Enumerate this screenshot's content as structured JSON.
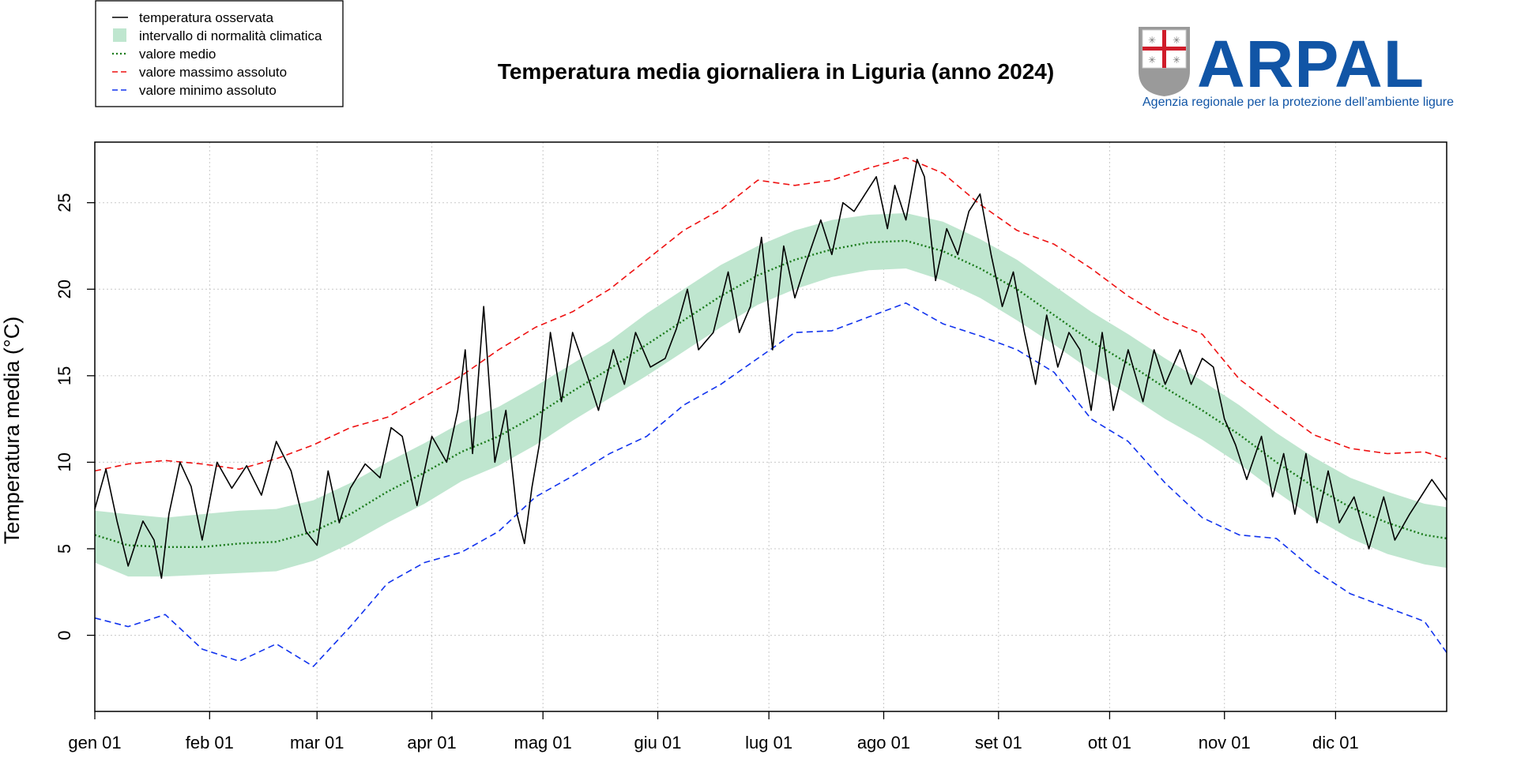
{
  "chart_data": {
    "type": "line",
    "title": "Temperatura media giornaliera in Liguria (anno 2024)",
    "xlabel": "",
    "ylabel": "Temperatura media (°C)",
    "xlim_days": [
      1,
      366
    ],
    "ylim": [
      -4.4,
      28.5
    ],
    "x_ticks": [
      {
        "label": "gen 01",
        "day": 1
      },
      {
        "label": "feb 01",
        "day": 32
      },
      {
        "label": "mar 01",
        "day": 61
      },
      {
        "label": "apr 01",
        "day": 92
      },
      {
        "label": "mag 01",
        "day": 122
      },
      {
        "label": "giu 01",
        "day": 153
      },
      {
        "label": "lug 01",
        "day": 183
      },
      {
        "label": "ago 01",
        "day": 214
      },
      {
        "label": "set 01",
        "day": 245
      },
      {
        "label": "ott 01",
        "day": 275
      },
      {
        "label": "nov 01",
        "day": 306
      },
      {
        "label": "dic 01",
        "day": 336
      }
    ],
    "y_ticks": [
      0,
      5,
      10,
      15,
      20,
      25
    ],
    "grid": true,
    "legend_position": "top-left",
    "legend": [
      {
        "label": "temperatura osservata",
        "style": "solid",
        "color": "#000000"
      },
      {
        "label": "intervallo di normalità climatica",
        "style": "band",
        "color": "#bfe6cf"
      },
      {
        "label": "valore medio",
        "style": "dotted",
        "color": "#1a7a1a"
      },
      {
        "label": "valore massimo assoluto",
        "style": "dashed",
        "color": "#ee1111"
      },
      {
        "label": "valore minimo assoluto",
        "style": "dashed",
        "color": "#1133ee"
      }
    ],
    "series": [
      {
        "name": "temperatura osservata",
        "color": "#000000",
        "points": [
          [
            1,
            7.3
          ],
          [
            4,
            9.6
          ],
          [
            7,
            6.6
          ],
          [
            10,
            4.0
          ],
          [
            14,
            6.6
          ],
          [
            17,
            5.5
          ],
          [
            19,
            3.3
          ],
          [
            21,
            7.0
          ],
          [
            24,
            10.0
          ],
          [
            27,
            8.6
          ],
          [
            30,
            5.5
          ],
          [
            34,
            10.0
          ],
          [
            38,
            8.5
          ],
          [
            42,
            9.8
          ],
          [
            46,
            8.1
          ],
          [
            50,
            11.2
          ],
          [
            54,
            9.5
          ],
          [
            58,
            6.0
          ],
          [
            61,
            5.2
          ],
          [
            64,
            9.5
          ],
          [
            67,
            6.5
          ],
          [
            70,
            8.5
          ],
          [
            74,
            9.9
          ],
          [
            78,
            9.1
          ],
          [
            81,
            12.0
          ],
          [
            84,
            11.5
          ],
          [
            88,
            7.5
          ],
          [
            92,
            11.5
          ],
          [
            96,
            10.0
          ],
          [
            99,
            13.0
          ],
          [
            101,
            16.5
          ],
          [
            103,
            10.5
          ],
          [
            106,
            19.0
          ],
          [
            109,
            10.0
          ],
          [
            112,
            13.0
          ],
          [
            115,
            7.0
          ],
          [
            117,
            5.3
          ],
          [
            119,
            8.5
          ],
          [
            121,
            11.0
          ],
          [
            124,
            17.5
          ],
          [
            127,
            13.5
          ],
          [
            130,
            17.5
          ],
          [
            134,
            15.0
          ],
          [
            137,
            13.0
          ],
          [
            141,
            16.5
          ],
          [
            144,
            14.5
          ],
          [
            147,
            17.5
          ],
          [
            151,
            15.5
          ],
          [
            155,
            16.0
          ],
          [
            158,
            17.7
          ],
          [
            161,
            20.0
          ],
          [
            164,
            16.5
          ],
          [
            168,
            17.5
          ],
          [
            172,
            21.0
          ],
          [
            175,
            17.5
          ],
          [
            178,
            19.0
          ],
          [
            181,
            23.0
          ],
          [
            184,
            16.5
          ],
          [
            187,
            22.5
          ],
          [
            190,
            19.5
          ],
          [
            193,
            21.5
          ],
          [
            197,
            24.0
          ],
          [
            200,
            22.0
          ],
          [
            203,
            25.0
          ],
          [
            206,
            24.5
          ],
          [
            209,
            25.5
          ],
          [
            212,
            26.5
          ],
          [
            215,
            23.5
          ],
          [
            217,
            26.0
          ],
          [
            220,
            24.0
          ],
          [
            223,
            27.5
          ],
          [
            225,
            26.5
          ],
          [
            228,
            20.5
          ],
          [
            231,
            23.5
          ],
          [
            234,
            22.0
          ],
          [
            237,
            24.5
          ],
          [
            240,
            25.5
          ],
          [
            243,
            22.0
          ],
          [
            246,
            19.0
          ],
          [
            249,
            21.0
          ],
          [
            252,
            17.5
          ],
          [
            255,
            14.5
          ],
          [
            258,
            18.5
          ],
          [
            261,
            15.5
          ],
          [
            264,
            17.5
          ],
          [
            267,
            16.5
          ],
          [
            270,
            13.0
          ],
          [
            273,
            17.5
          ],
          [
            276,
            13.0
          ],
          [
            280,
            16.5
          ],
          [
            284,
            13.5
          ],
          [
            287,
            16.5
          ],
          [
            290,
            14.5
          ],
          [
            294,
            16.5
          ],
          [
            297,
            14.5
          ],
          [
            300,
            16.0
          ],
          [
            303,
            15.5
          ],
          [
            306,
            12.5
          ],
          [
            309,
            11.0
          ],
          [
            312,
            9.0
          ],
          [
            316,
            11.5
          ],
          [
            319,
            8.0
          ],
          [
            322,
            10.5
          ],
          [
            325,
            7.0
          ],
          [
            328,
            10.5
          ],
          [
            331,
            6.5
          ],
          [
            334,
            9.5
          ],
          [
            337,
            6.5
          ],
          [
            341,
            8.0
          ],
          [
            345,
            5.0
          ],
          [
            349,
            8.0
          ],
          [
            352,
            5.5
          ],
          [
            356,
            7.0
          ],
          [
            359,
            8.0
          ],
          [
            362,
            9.0
          ],
          [
            366,
            7.8
          ]
        ]
      },
      {
        "name": "valore medio",
        "color": "#1a7a1a",
        "points": [
          [
            1,
            5.8
          ],
          [
            10,
            5.2
          ],
          [
            20,
            5.1
          ],
          [
            30,
            5.1
          ],
          [
            40,
            5.3
          ],
          [
            50,
            5.4
          ],
          [
            60,
            6.0
          ],
          [
            70,
            7.0
          ],
          [
            80,
            8.3
          ],
          [
            90,
            9.4
          ],
          [
            100,
            10.6
          ],
          [
            110,
            11.5
          ],
          [
            120,
            12.7
          ],
          [
            130,
            14.1
          ],
          [
            140,
            15.4
          ],
          [
            150,
            16.8
          ],
          [
            160,
            18.2
          ],
          [
            170,
            19.6
          ],
          [
            180,
            20.8
          ],
          [
            190,
            21.7
          ],
          [
            200,
            22.3
          ],
          [
            210,
            22.7
          ],
          [
            220,
            22.8
          ],
          [
            230,
            22.2
          ],
          [
            240,
            21.2
          ],
          [
            250,
            20.0
          ],
          [
            260,
            18.5
          ],
          [
            270,
            17.0
          ],
          [
            280,
            15.7
          ],
          [
            290,
            14.3
          ],
          [
            300,
            13.0
          ],
          [
            310,
            11.6
          ],
          [
            320,
            10.0
          ],
          [
            330,
            8.6
          ],
          [
            340,
            7.4
          ],
          [
            350,
            6.5
          ],
          [
            360,
            5.8
          ],
          [
            366,
            5.6
          ]
        ]
      },
      {
        "name": "valore massimo assoluto",
        "color": "#ee1111",
        "points": [
          [
            1,
            9.5
          ],
          [
            10,
            9.9
          ],
          [
            20,
            10.1
          ],
          [
            30,
            9.9
          ],
          [
            40,
            9.6
          ],
          [
            50,
            10.2
          ],
          [
            60,
            11.0
          ],
          [
            70,
            12.0
          ],
          [
            80,
            12.6
          ],
          [
            90,
            13.8
          ],
          [
            100,
            15.0
          ],
          [
            110,
            16.5
          ],
          [
            120,
            17.8
          ],
          [
            130,
            18.7
          ],
          [
            140,
            20.0
          ],
          [
            150,
            21.7
          ],
          [
            160,
            23.4
          ],
          [
            170,
            24.6
          ],
          [
            180,
            26.3
          ],
          [
            190,
            26.0
          ],
          [
            200,
            26.3
          ],
          [
            210,
            27.0
          ],
          [
            220,
            27.6
          ],
          [
            230,
            26.7
          ],
          [
            240,
            24.9
          ],
          [
            250,
            23.4
          ],
          [
            260,
            22.6
          ],
          [
            270,
            21.2
          ],
          [
            280,
            19.6
          ],
          [
            290,
            18.3
          ],
          [
            300,
            17.4
          ],
          [
            310,
            14.8
          ],
          [
            320,
            13.2
          ],
          [
            330,
            11.6
          ],
          [
            340,
            10.8
          ],
          [
            350,
            10.5
          ],
          [
            360,
            10.6
          ],
          [
            366,
            10.2
          ]
        ]
      },
      {
        "name": "valore minimo assoluto",
        "color": "#1133ee",
        "points": [
          [
            1,
            1.0
          ],
          [
            10,
            0.5
          ],
          [
            20,
            1.2
          ],
          [
            30,
            -0.8
          ],
          [
            40,
            -1.5
          ],
          [
            50,
            -0.5
          ],
          [
            60,
            -1.8
          ],
          [
            70,
            0.5
          ],
          [
            80,
            3.0
          ],
          [
            90,
            4.2
          ],
          [
            100,
            4.8
          ],
          [
            110,
            6.0
          ],
          [
            120,
            8.0
          ],
          [
            130,
            9.2
          ],
          [
            140,
            10.5
          ],
          [
            150,
            11.5
          ],
          [
            160,
            13.3
          ],
          [
            170,
            14.5
          ],
          [
            180,
            16.0
          ],
          [
            190,
            17.5
          ],
          [
            200,
            17.6
          ],
          [
            210,
            18.4
          ],
          [
            220,
            19.2
          ],
          [
            230,
            18.0
          ],
          [
            240,
            17.3
          ],
          [
            250,
            16.5
          ],
          [
            260,
            15.2
          ],
          [
            270,
            12.5
          ],
          [
            280,
            11.2
          ],
          [
            290,
            8.8
          ],
          [
            300,
            6.8
          ],
          [
            310,
            5.8
          ],
          [
            320,
            5.6
          ],
          [
            330,
            3.8
          ],
          [
            340,
            2.4
          ],
          [
            350,
            1.6
          ],
          [
            360,
            0.8
          ],
          [
            366,
            -1.0
          ]
        ]
      }
    ],
    "band": {
      "name": "intervallo di normalità climatica",
      "color": "#bfe6cf",
      "points": [
        [
          1,
          4.2,
          7.2
        ],
        [
          10,
          3.4,
          7.0
        ],
        [
          20,
          3.4,
          6.8
        ],
        [
          30,
          3.5,
          7.0
        ],
        [
          40,
          3.6,
          7.2
        ],
        [
          50,
          3.7,
          7.3
        ],
        [
          60,
          4.3,
          7.8
        ],
        [
          70,
          5.3,
          8.8
        ],
        [
          80,
          6.5,
          10.0
        ],
        [
          90,
          7.6,
          11.1
        ],
        [
          100,
          8.9,
          12.3
        ],
        [
          110,
          9.8,
          13.2
        ],
        [
          120,
          11.0,
          14.4
        ],
        [
          130,
          12.4,
          15.7
        ],
        [
          140,
          13.7,
          17.0
        ],
        [
          150,
          15.0,
          18.6
        ],
        [
          160,
          16.4,
          20.0
        ],
        [
          170,
          17.8,
          21.4
        ],
        [
          180,
          19.1,
          22.5
        ],
        [
          190,
          20.0,
          23.4
        ],
        [
          200,
          20.7,
          24.0
        ],
        [
          210,
          21.1,
          24.3
        ],
        [
          220,
          21.2,
          24.4
        ],
        [
          230,
          20.5,
          23.9
        ],
        [
          240,
          19.5,
          22.9
        ],
        [
          250,
          18.2,
          21.7
        ],
        [
          260,
          16.8,
          20.2
        ],
        [
          270,
          15.3,
          18.7
        ],
        [
          280,
          13.9,
          17.4
        ],
        [
          290,
          12.5,
          16.0
        ],
        [
          300,
          11.3,
          14.7
        ],
        [
          310,
          9.9,
          13.3
        ],
        [
          320,
          8.3,
          11.7
        ],
        [
          330,
          6.8,
          10.3
        ],
        [
          340,
          5.6,
          9.1
        ],
        [
          350,
          4.7,
          8.3
        ],
        [
          360,
          4.1,
          7.6
        ],
        [
          366,
          3.9,
          7.4
        ]
      ]
    }
  },
  "logo": {
    "name": "ARPAL",
    "subtitle": "Agenzia regionale per la protezione dell’ambiente ligure",
    "brand_color": "#1155a6"
  }
}
